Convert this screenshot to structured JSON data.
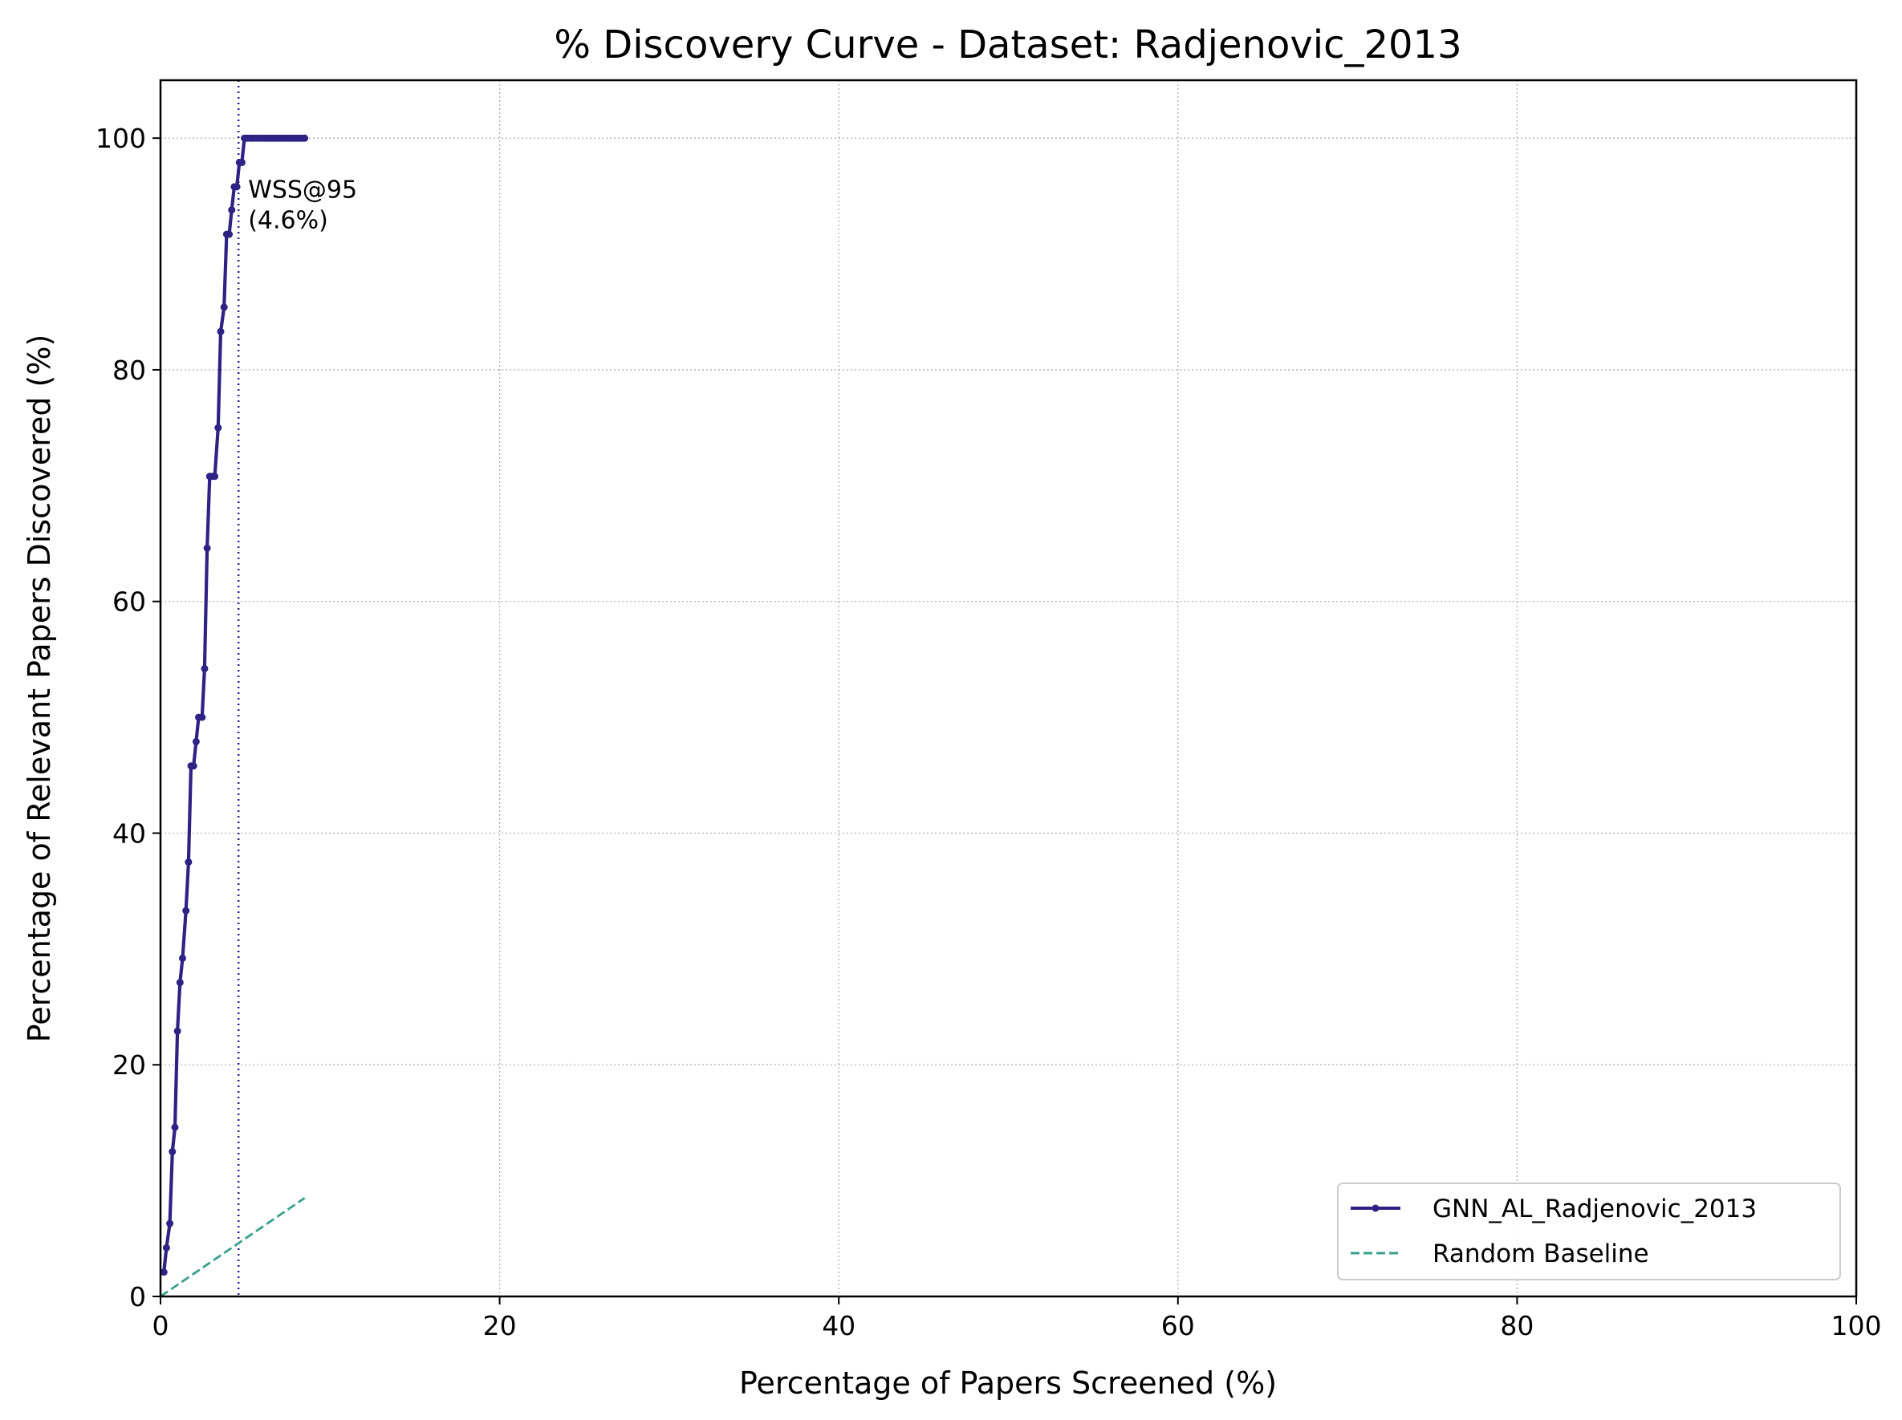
{
  "chart_data": {
    "type": "line",
    "title": "% Discovery Curve - Dataset: Radjenovic_2013",
    "xlabel": "Percentage of Papers Screened (%)",
    "ylabel": "Percentage of Relevant Papers Discovered (%)",
    "xlim": [
      0,
      100
    ],
    "ylim": [
      0,
      105
    ],
    "xticks": [
      "0",
      "20",
      "40",
      "60",
      "80",
      "100"
    ],
    "yticks": [
      "0",
      "20",
      "40",
      "60",
      "80",
      "100"
    ],
    "grid": true,
    "legend_position": "lower-right",
    "series": [
      {
        "name": "GNN_AL_Radjenovic_2013",
        "color": "#2e2284",
        "style": "solid-with-markers",
        "x": [
          0.2,
          0.35,
          0.55,
          0.7,
          0.85,
          1.0,
          1.15,
          1.3,
          1.5,
          1.65,
          1.8,
          1.95,
          2.1,
          2.25,
          2.45,
          2.6,
          2.75,
          2.9,
          3.05,
          3.2,
          3.4,
          3.55,
          3.75,
          3.9,
          4.05,
          4.2,
          4.35,
          4.5,
          4.65,
          4.8,
          4.95,
          5.1,
          5.25,
          5.4,
          5.55,
          5.7,
          5.85,
          6.0,
          6.15,
          6.3,
          6.45,
          6.6,
          6.75,
          6.9,
          7.05,
          7.2,
          7.35,
          7.5,
          7.65,
          7.8,
          7.95,
          8.1,
          8.25,
          8.4,
          8.5
        ],
        "y": [
          2.1,
          4.2,
          6.3,
          12.5,
          14.6,
          22.9,
          27.1,
          29.2,
          33.3,
          37.5,
          45.8,
          45.8,
          47.9,
          50.0,
          50.0,
          54.2,
          64.6,
          70.8,
          70.8,
          70.8,
          75.0,
          83.3,
          85.4,
          91.7,
          91.7,
          93.8,
          95.8,
          95.8,
          97.9,
          97.9,
          100,
          100,
          100,
          100,
          100,
          100,
          100,
          100,
          100,
          100,
          100,
          100,
          100,
          100,
          100,
          100,
          100,
          100,
          100,
          100,
          100,
          100,
          100,
          100,
          100
        ]
      },
      {
        "name": "Random Baseline",
        "color": "#3aa08c",
        "style": "dashed",
        "x": [
          0,
          8.5
        ],
        "y": [
          0,
          8.5
        ]
      }
    ],
    "annotations": [
      {
        "type": "vline",
        "x": 4.6,
        "color": "#2e2284",
        "style": "dotted"
      },
      {
        "type": "text",
        "lines": [
          "WSS@95",
          "(4.6%)"
        ],
        "x": 4.6,
        "y": 95,
        "color": "#2e2284"
      }
    ]
  }
}
